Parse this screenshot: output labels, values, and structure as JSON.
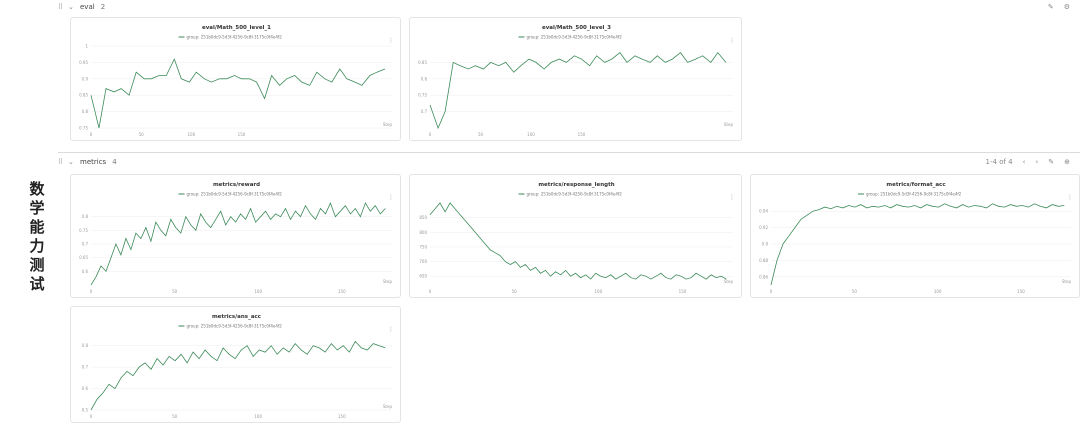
{
  "side_label": "数学能力测试",
  "sections": {
    "eval": {
      "name": "eval",
      "count": "2"
    },
    "metrics": {
      "name": "metrics",
      "count": "4",
      "pagination": "1-4 of 4"
    }
  },
  "icons": {
    "drag": "drag-handle-icon",
    "collapse": "chevron-down-icon",
    "edit": "edit-icon",
    "settings": "gear-icon",
    "prev": "chevron-left-icon",
    "next": "chevron-right-icon",
    "add": "add-icon"
  },
  "colors": {
    "line": "#3d8b5a",
    "grid": "#eeeeee",
    "axis": "#999999"
  },
  "chart_data": [
    {
      "type": "line",
      "title": "eval/Math_500_level_1",
      "series": [
        {
          "name": "group: 251b0dc9-5d3f-4256-9c8f-3175c0f4e4f2",
          "x": [
            0,
            8,
            15,
            23,
            30,
            38,
            45,
            53,
            60,
            68,
            75,
            83,
            90,
            98,
            105,
            113,
            120,
            128,
            135,
            143,
            150,
            158,
            165,
            173,
            180,
            188,
            195,
            203,
            210,
            218,
            225,
            233,
            240,
            248,
            255,
            263,
            270,
            278,
            285,
            293
          ],
          "values": [
            0.85,
            0.7,
            0.87,
            0.86,
            0.87,
            0.85,
            0.92,
            0.9,
            0.9,
            0.91,
            0.91,
            0.96,
            0.9,
            0.89,
            0.92,
            0.9,
            0.89,
            0.9,
            0.9,
            0.91,
            0.9,
            0.9,
            0.89,
            0.84,
            0.91,
            0.88,
            0.9,
            0.91,
            0.89,
            0.88,
            0.92,
            0.9,
            0.89,
            0.93,
            0.9,
            0.89,
            0.88,
            0.91,
            0.92,
            0.93
          ]
        }
      ],
      "x_ticks": [
        "0",
        "50",
        "100",
        "150"
      ],
      "y_ticks": [
        "0.75",
        "0.8",
        "0.85",
        "0.9",
        "0.95",
        "1"
      ],
      "xlabel": "Step",
      "ylim": [
        0.75,
        1.0
      ],
      "xlim": [
        0,
        300
      ]
    },
    {
      "type": "line",
      "title": "eval/Math_500_level_3",
      "series": [
        {
          "name": "group: 251b0dc9-5d3f-4256-9c8f-3175c0f4e4f2",
          "x": [
            0,
            8,
            15,
            23,
            30,
            38,
            45,
            53,
            60,
            68,
            75,
            83,
            90,
            98,
            105,
            113,
            120,
            128,
            135,
            143,
            150,
            158,
            165,
            173,
            180,
            188,
            195,
            203,
            210,
            218,
            225,
            233,
            240,
            248,
            255,
            263,
            270,
            278,
            285,
            293
          ],
          "values": [
            0.72,
            0.64,
            0.7,
            0.85,
            0.84,
            0.83,
            0.84,
            0.83,
            0.85,
            0.84,
            0.85,
            0.82,
            0.84,
            0.86,
            0.85,
            0.83,
            0.85,
            0.86,
            0.85,
            0.87,
            0.86,
            0.84,
            0.87,
            0.85,
            0.86,
            0.88,
            0.85,
            0.87,
            0.86,
            0.85,
            0.87,
            0.85,
            0.86,
            0.88,
            0.85,
            0.86,
            0.87,
            0.85,
            0.88,
            0.85
          ],
          "x_max": 300
        }
      ],
      "x_ticks": [
        "0",
        "50",
        "100",
        "150"
      ],
      "y_ticks": [
        "0.7",
        "0.75",
        "0.8",
        "0.85"
      ],
      "xlabel": "Step",
      "ylim": [
        0.65,
        0.9
      ],
      "xlim": [
        0,
        300
      ]
    },
    {
      "type": "line",
      "title": "metrics/reward",
      "series": [
        {
          "name": "group: 251b0dc9-5d3f-4256-9c8f-3175c0f4e4f2",
          "values": [
            0.55,
            0.58,
            0.62,
            0.6,
            0.65,
            0.7,
            0.66,
            0.72,
            0.68,
            0.74,
            0.72,
            0.76,
            0.71,
            0.78,
            0.75,
            0.73,
            0.79,
            0.76,
            0.74,
            0.8,
            0.77,
            0.75,
            0.81,
            0.78,
            0.76,
            0.79,
            0.82,
            0.77,
            0.8,
            0.78,
            0.81,
            0.79,
            0.83,
            0.78,
            0.8,
            0.82,
            0.79,
            0.81,
            0.8,
            0.83,
            0.79,
            0.82,
            0.8,
            0.84,
            0.81,
            0.79,
            0.83,
            0.81,
            0.85,
            0.8,
            0.82,
            0.84,
            0.81,
            0.83,
            0.8,
            0.85,
            0.82,
            0.84,
            0.81,
            0.83
          ]
        }
      ],
      "x_ticks": [
        "0",
        "50",
        "100",
        "150"
      ],
      "y_ticks": [
        "0.6",
        "0.65",
        "0.7",
        "0.75",
        "0.8"
      ],
      "xlabel": "Step",
      "ylim": [
        0.55,
        0.85
      ]
    },
    {
      "type": "line",
      "title": "metrics/response_length",
      "series": [
        {
          "name": "group: 251b0dc9-5d3f-4256-9c8f-3175c0f4e4f2",
          "values": [
            860,
            880,
            900,
            870,
            910,
            880,
            860,
            840,
            820,
            800,
            780,
            760,
            740,
            730,
            720,
            700,
            690,
            700,
            680,
            690,
            670,
            680,
            660,
            670,
            650,
            665,
            655,
            670,
            650,
            660,
            645,
            655,
            640,
            660,
            650,
            645,
            655,
            640,
            650,
            660,
            645,
            640,
            655,
            650,
            640,
            650,
            660,
            645,
            640,
            655,
            650,
            640,
            645,
            660,
            650,
            640,
            655,
            645,
            650,
            640
          ]
        }
      ],
      "x_ticks": [
        "0",
        "50",
        "100",
        "150"
      ],
      "y_ticks": [
        "650",
        "700",
        "750",
        "800",
        "850"
      ],
      "xlabel": "Step",
      "ylim": [
        620,
        900
      ]
    },
    {
      "type": "line",
      "title": "metrics/format_acc",
      "series": [
        {
          "name": "group: 251b0dc9-5d3f-4256-9c8f-3175c0f4e4f2",
          "values": [
            0.85,
            0.88,
            0.9,
            0.91,
            0.92,
            0.93,
            0.935,
            0.94,
            0.942,
            0.945,
            0.943,
            0.946,
            0.944,
            0.947,
            0.945,
            0.948,
            0.944,
            0.946,
            0.945,
            0.947,
            0.944,
            0.948,
            0.946,
            0.945,
            0.947,
            0.944,
            0.948,
            0.946,
            0.945,
            0.949,
            0.946,
            0.944,
            0.948,
            0.945,
            0.947,
            0.946,
            0.944,
            0.949,
            0.946,
            0.945,
            0.948,
            0.946,
            0.947,
            0.945,
            0.949,
            0.946,
            0.944,
            0.948,
            0.946,
            0.947
          ]
        }
      ],
      "x_ticks": [
        "0",
        "50",
        "100",
        "150"
      ],
      "y_ticks": [
        "0.86",
        "0.88",
        "0.9",
        "0.92",
        "0.94"
      ],
      "xlabel": "Step",
      "ylim": [
        0.85,
        0.95
      ]
    },
    {
      "type": "line",
      "title": "metrics/ans_acc",
      "series": [
        {
          "name": "group: 251b0dc9-5d3f-4256-9c8f-3175c0f4e4f2",
          "values": [
            0.5,
            0.55,
            0.58,
            0.62,
            0.6,
            0.65,
            0.68,
            0.66,
            0.7,
            0.72,
            0.69,
            0.74,
            0.71,
            0.75,
            0.73,
            0.76,
            0.72,
            0.77,
            0.74,
            0.78,
            0.75,
            0.73,
            0.79,
            0.76,
            0.74,
            0.78,
            0.8,
            0.75,
            0.78,
            0.77,
            0.8,
            0.76,
            0.79,
            0.77,
            0.81,
            0.78,
            0.76,
            0.8,
            0.79,
            0.77,
            0.81,
            0.78,
            0.8,
            0.77,
            0.82,
            0.79,
            0.78,
            0.81,
            0.8,
            0.79
          ]
        }
      ],
      "x_ticks": [
        "0",
        "50",
        "100",
        "150"
      ],
      "y_ticks": [
        "0.5",
        "0.6",
        "0.7",
        "0.8"
      ],
      "xlabel": "Step",
      "ylim": [
        0.5,
        0.85
      ]
    }
  ]
}
